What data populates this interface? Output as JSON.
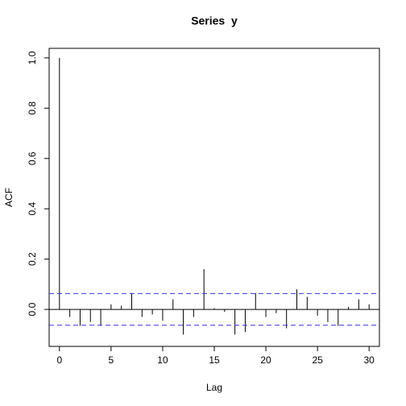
{
  "chart_data": {
    "type": "acf",
    "title": "Series  y",
    "x_label": "Lag",
    "y_label": "ACF",
    "x": [
      0,
      1,
      2,
      3,
      4,
      5,
      6,
      7,
      8,
      9,
      10,
      11,
      12,
      13,
      14,
      15,
      16,
      17,
      18,
      19,
      20,
      21,
      22,
      23,
      24,
      25,
      26,
      27,
      28,
      29,
      30
    ],
    "values": [
      1.0,
      -0.03,
      -0.065,
      -0.05,
      -0.065,
      0.02,
      0.015,
      0.065,
      -0.03,
      -0.02,
      -0.045,
      0.04,
      -0.1,
      -0.03,
      0.16,
      0.005,
      -0.01,
      -0.1,
      -0.09,
      0.065,
      -0.03,
      -0.015,
      -0.075,
      0.08,
      0.05,
      -0.025,
      -0.05,
      -0.065,
      0.01,
      0.04,
      0.02
    ],
    "color": "#000000",
    "ci": 0.063,
    "ci_color": "#3333cc",
    "xlim": [
      -1,
      31
    ],
    "ylim": [
      -0.147,
      1.038
    ],
    "xticks": [
      0,
      5,
      10,
      15,
      20,
      25,
      30
    ],
    "yticks": [
      {
        "value": 0,
        "label": "0.0"
      },
      {
        "value": 0.2,
        "label": "0.2"
      },
      {
        "value": 0.4,
        "label": "0.4"
      },
      {
        "value": 0.6,
        "label": "0.6"
      },
      {
        "value": 0.8,
        "label": "0.8"
      },
      {
        "value": 1.0,
        "label": "1.0"
      }
    ]
  }
}
